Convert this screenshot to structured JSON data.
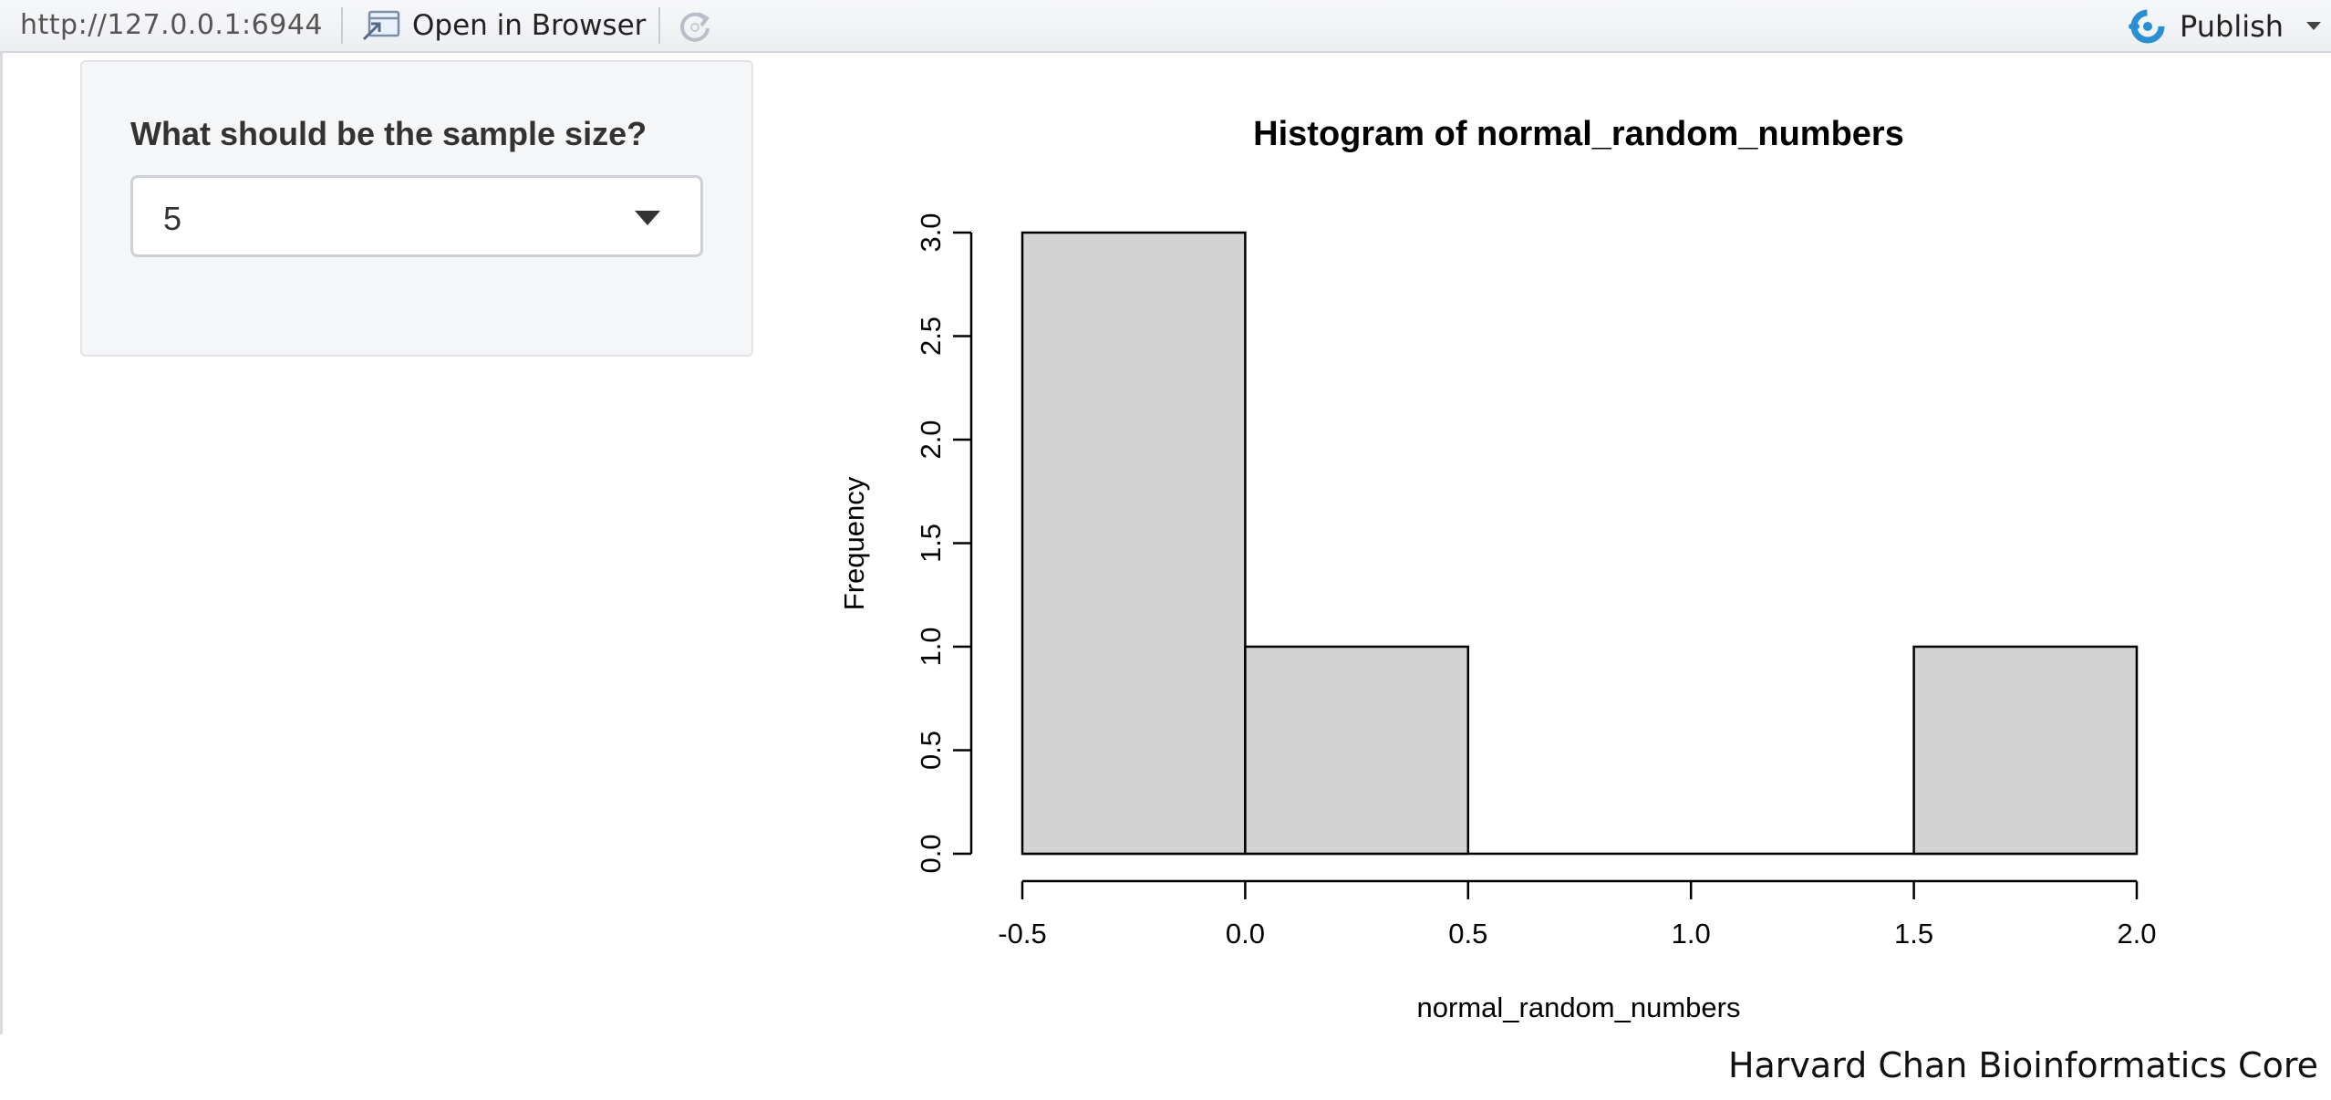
{
  "toolbar": {
    "url": "http://127.0.0.1:6944",
    "open_in_browser_label": "Open in Browser",
    "publish_label": "Publish",
    "icons": {
      "open": "open-in-browser-icon",
      "refresh": "refresh-icon",
      "publish": "publish-icon",
      "caret": "chevron-down-icon"
    },
    "publish_color": "#2a8fd0"
  },
  "sidebar": {
    "label": "What should be the sample size?",
    "select": {
      "selected": "5",
      "caret_icon": "caret-down-icon"
    }
  },
  "chart_data": {
    "type": "bar",
    "title": "Histogram of normal_random_numbers",
    "xlabel": "normal_random_numbers",
    "ylabel": "Frequency",
    "bins": [
      {
        "start": -0.5,
        "end": 0.0,
        "count": 3
      },
      {
        "start": 0.0,
        "end": 0.5,
        "count": 1
      },
      {
        "start": 0.5,
        "end": 1.0,
        "count": 0
      },
      {
        "start": 1.0,
        "end": 1.5,
        "count": 0
      },
      {
        "start": 1.5,
        "end": 2.0,
        "count": 1
      }
    ],
    "xlim": [
      -0.5,
      2.0
    ],
    "ylim": [
      0,
      3.0
    ],
    "x_ticks": [
      "-0.5",
      "0.0",
      "0.5",
      "1.0",
      "1.5",
      "2.0"
    ],
    "y_ticks": [
      "0.0",
      "0.5",
      "1.0",
      "1.5",
      "2.0",
      "2.5",
      "3.0"
    ],
    "bar_fill": "#d3d3d3",
    "grid": false,
    "legend": "none"
  },
  "credit": "Harvard Chan Bioinformatics Core"
}
